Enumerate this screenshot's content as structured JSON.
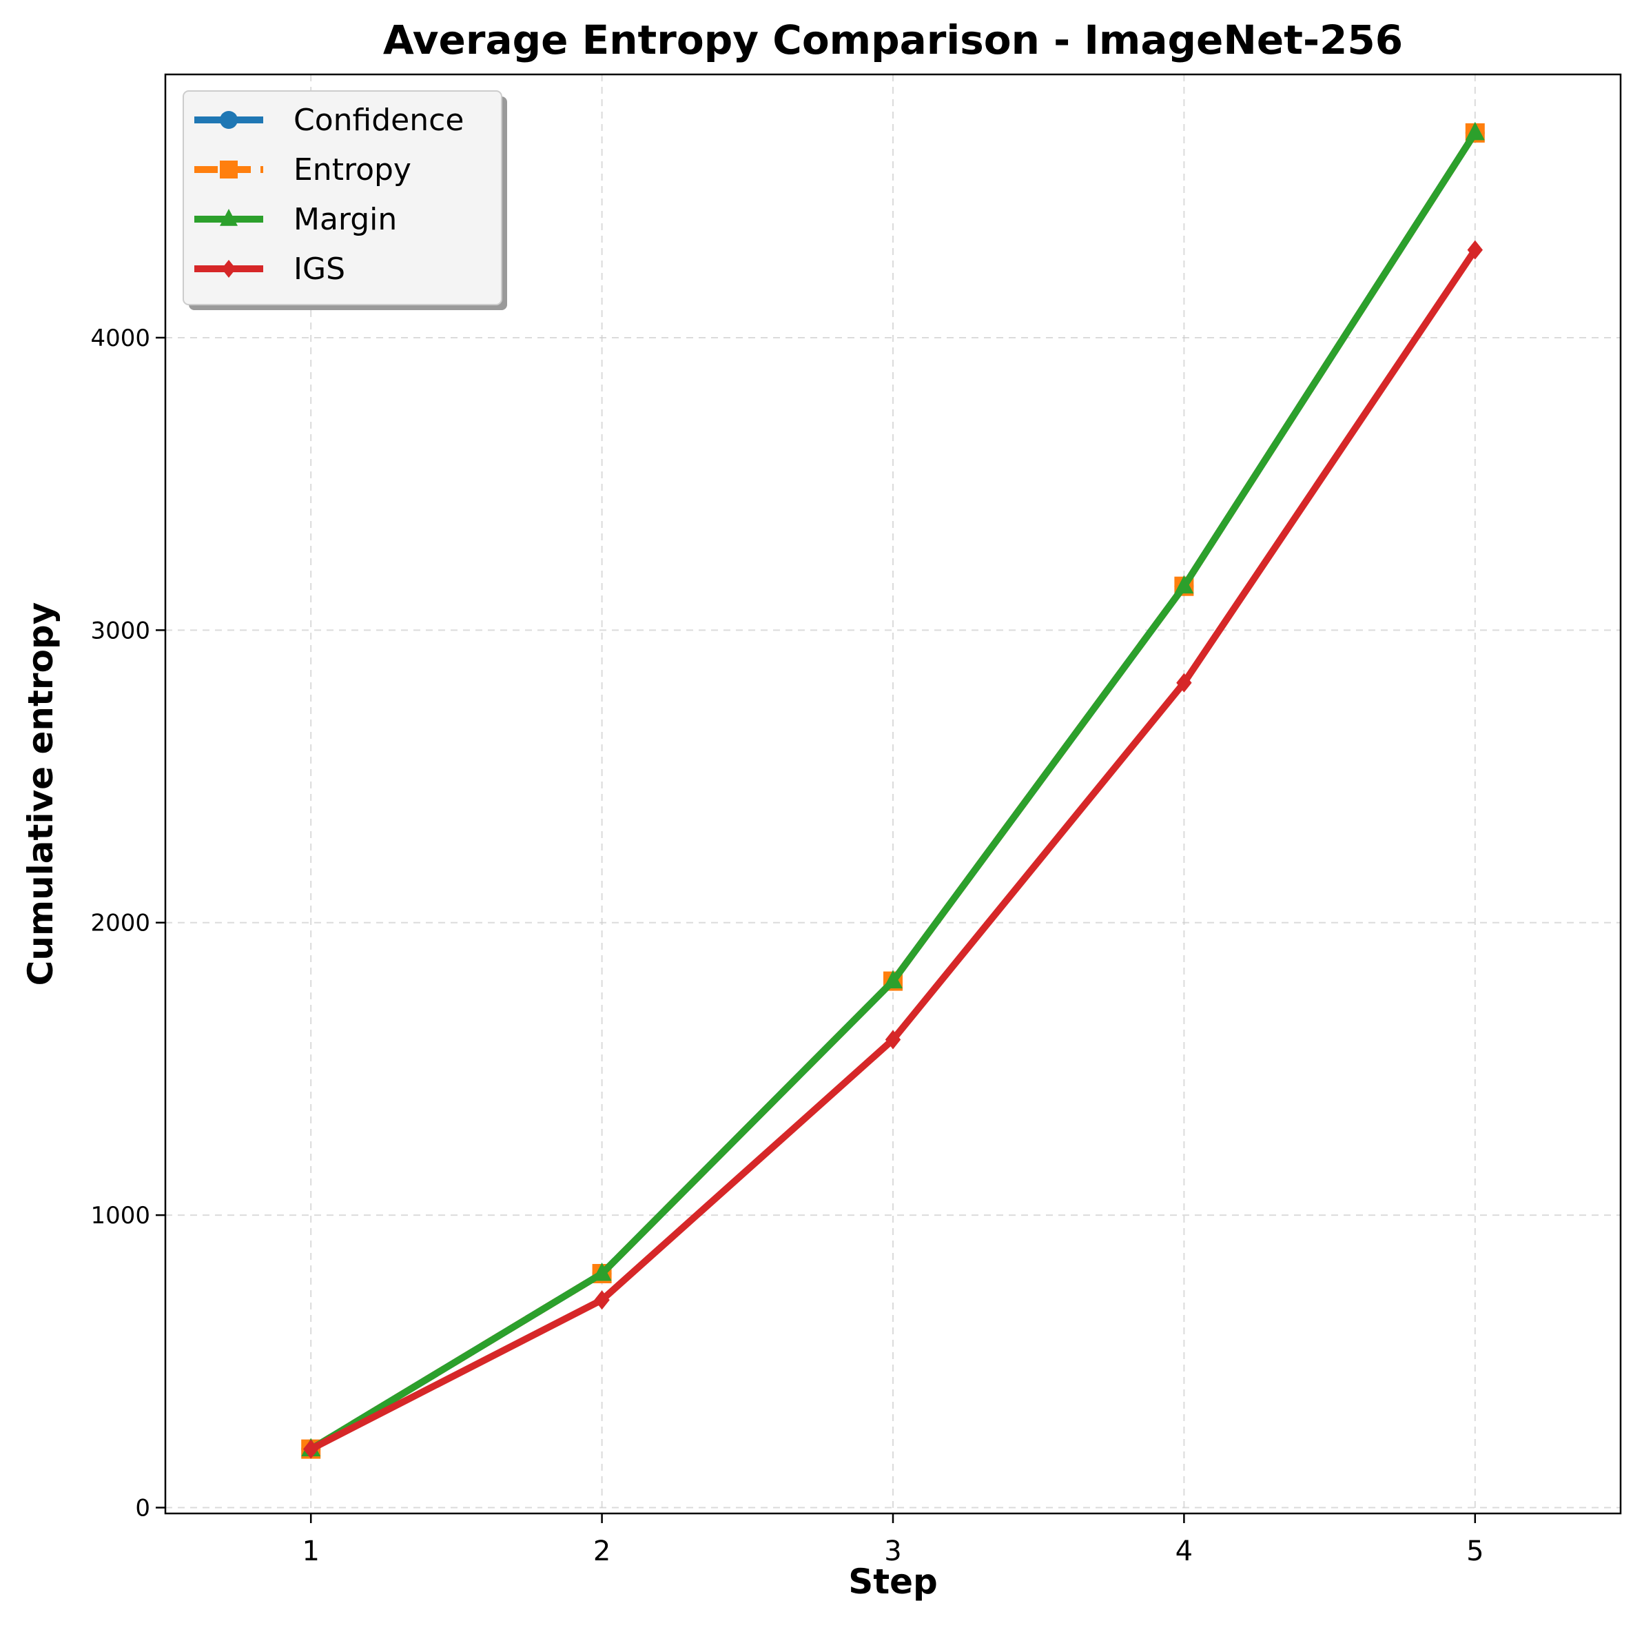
{
  "chart_data": {
    "type": "line",
    "title": "Average Entropy Comparison - ImageNet-256",
    "xlabel": "Step",
    "ylabel": "Cumulative entropy",
    "x": [
      1,
      2,
      3,
      4,
      5
    ],
    "xlim": [
      0.5,
      5.5
    ],
    "ylim": [
      -20,
      4900
    ],
    "xticks": [
      "1",
      "2",
      "3",
      "4",
      "5"
    ],
    "yticks": [
      0,
      1000,
      2000,
      3000,
      4000
    ],
    "grid": true,
    "legend_position": "top-left",
    "series": [
      {
        "name": "Confidence",
        "color": "#1f77b4",
        "marker": "circle",
        "dash": "solid",
        "values": [
          200,
          800,
          1800,
          3150,
          4700
        ]
      },
      {
        "name": "Entropy",
        "color": "#ff7f0e",
        "marker": "square",
        "dash": "dashed",
        "values": [
          200,
          800,
          1800,
          3150,
          4700
        ]
      },
      {
        "name": "Margin",
        "color": "#2ca02c",
        "marker": "triangle",
        "dash": "solid",
        "values": [
          200,
          800,
          1800,
          3150,
          4700
        ]
      },
      {
        "name": "IGS",
        "color": "#d62728",
        "marker": "diamond",
        "dash": "solid",
        "values": [
          200,
          710,
          1600,
          2820,
          4300
        ]
      }
    ]
  }
}
